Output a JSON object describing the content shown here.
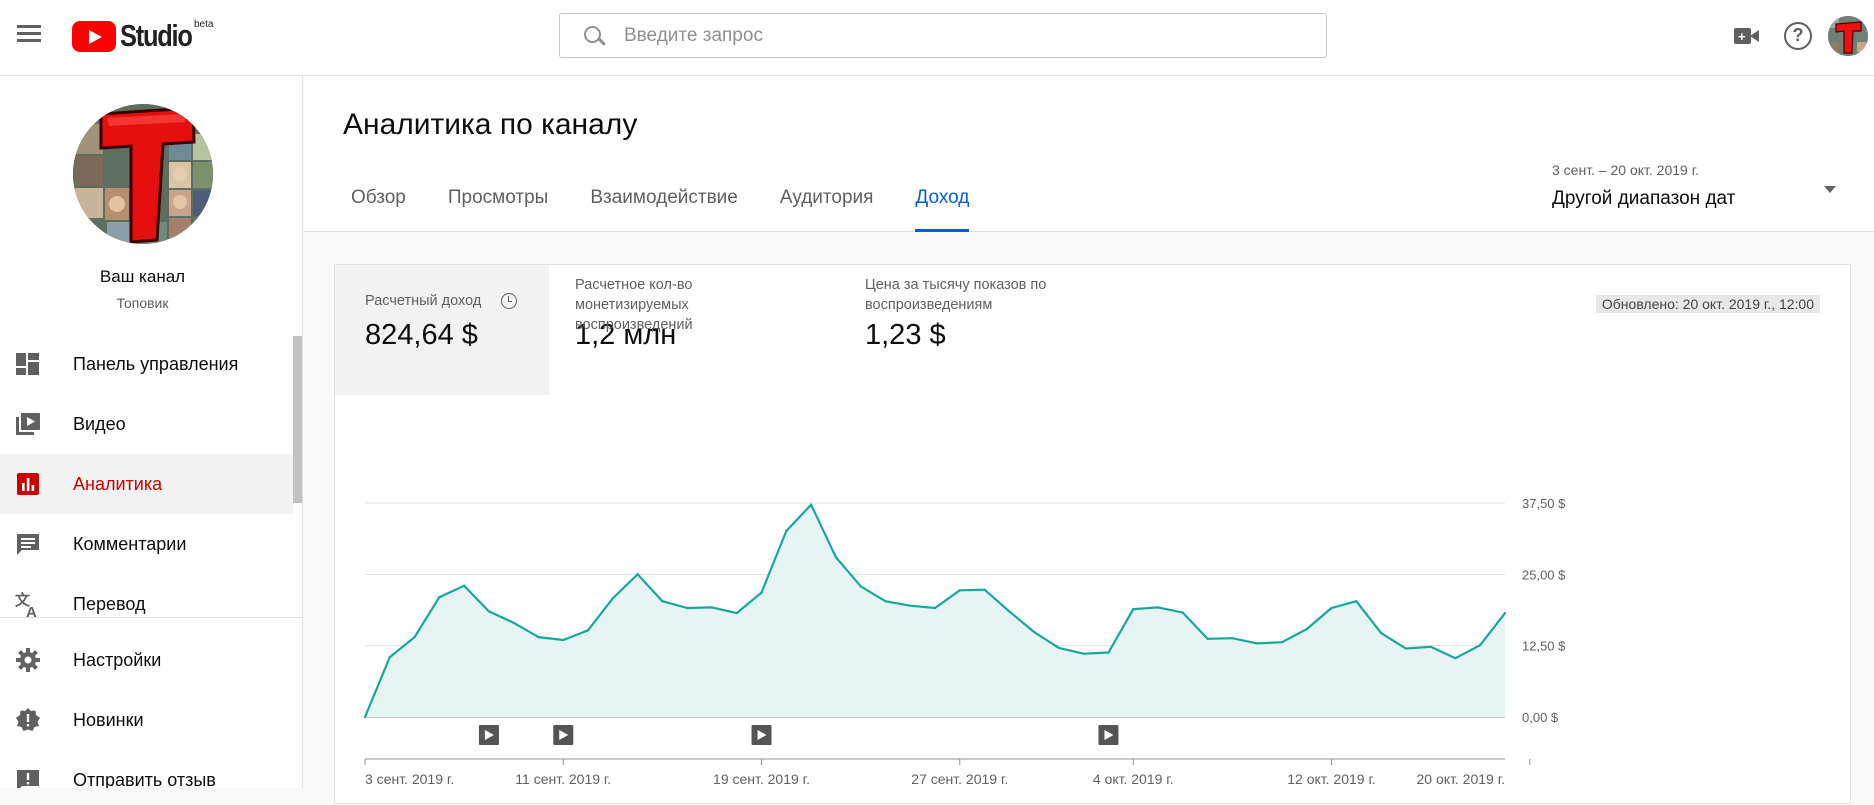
{
  "topbar": {
    "logo_text": "Studio",
    "logo_badge": "beta",
    "search_placeholder": "Введите запрос",
    "icons": [
      "menu-icon",
      "create-video-icon",
      "help-icon",
      "avatar"
    ]
  },
  "sidebar": {
    "channel_name": "Ваш канал",
    "channel_subtitle": "Топовик",
    "items": [
      {
        "label": "Панель управления",
        "icon": "dashboard-icon",
        "active": false
      },
      {
        "label": "Видео",
        "icon": "video-library-icon",
        "active": false
      },
      {
        "label": "Аналитика",
        "icon": "analytics-icon",
        "active": true
      },
      {
        "label": "Комментарии",
        "icon": "comments-icon",
        "active": false
      },
      {
        "label": "Перевод",
        "icon": "translate-icon",
        "active": false
      },
      {
        "label": "Настройки",
        "icon": "settings-gear-icon",
        "active": false
      },
      {
        "label": "Новинки",
        "icon": "whats-new-icon",
        "active": false
      },
      {
        "label": "Отправить отзыв",
        "icon": "feedback-icon",
        "active": false
      }
    ]
  },
  "header": {
    "title": "Аналитика по каналу",
    "tabs": [
      {
        "label": "Обзор",
        "active": false
      },
      {
        "label": "Просмотры",
        "active": false
      },
      {
        "label": "Взаимодействие",
        "active": false
      },
      {
        "label": "Аудитория",
        "active": false
      },
      {
        "label": "Доход",
        "active": true
      }
    ],
    "date_range_sub": "3 сент. – 20 окт. 2019 г.",
    "date_range_label": "Другой диапазон дат"
  },
  "metrics": [
    {
      "label": "Расчетный доход",
      "value": "824,64 $",
      "active": true
    },
    {
      "label": "Расчетное кол-во монетизируемых воспроизведений",
      "value": "1,2 млн",
      "active": false
    },
    {
      "label": "Цена за тысячу показов по воспроизведениям",
      "value": "1,23 $",
      "active": false
    }
  ],
  "updated_label": "Обновлено: 20 окт. 2019 г., 12:00",
  "colors": {
    "accent": "#065fd4",
    "brand_red": "#ff0000",
    "active_nav": "#cc0000",
    "line": "#1aa79b",
    "area_fill": "#e6f5f3"
  },
  "chart_data": {
    "type": "area",
    "y_ticks": [
      "0,00 $",
      "12,50 $",
      "25,00 $",
      "37,50 $"
    ],
    "ylim": [
      0,
      37.5
    ],
    "x_tick_labels": [
      "3 сент. 2019 г.",
      "11 сент. 2019 г.",
      "19 сент. 2019 г.",
      "27 сент. 2019 г.",
      "4 окт. 2019 г.",
      "12 окт. 2019 г.",
      "20 окт. 2019 г."
    ],
    "x_tick_day_index": [
      0,
      8,
      16,
      24,
      31,
      39,
      47
    ],
    "series": [
      {
        "values": [
          0,
          10.5,
          14,
          21,
          23,
          18.5,
          16.5,
          14,
          13.5,
          15.2,
          20.8,
          25,
          20.3,
          19.1,
          19.2,
          18.2,
          21.8,
          32.6,
          37.2,
          28,
          22.9,
          20.3,
          19.5,
          19.1,
          22.2,
          22.3,
          18.5,
          14.9,
          12.1,
          11.1,
          11.3,
          18.9,
          19.2,
          18.3,
          13.7,
          13.8,
          12.9,
          13.1,
          15.4,
          19.1,
          20.3,
          14.7,
          12,
          12.3,
          10.3,
          12.6,
          18.2
        ]
      }
    ],
    "partial_from_index": 46,
    "video_markers_day_index": [
      5,
      8,
      16,
      30
    ],
    "grid": true
  }
}
